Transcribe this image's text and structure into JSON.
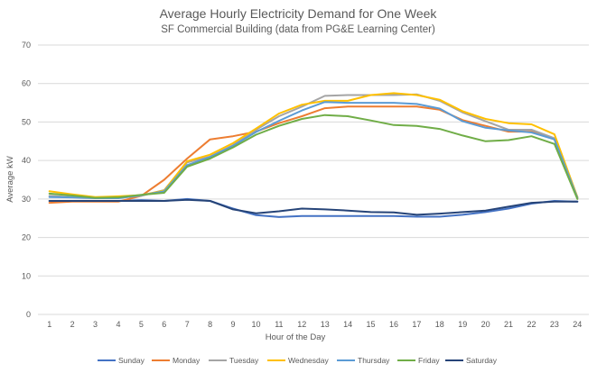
{
  "chart_data": {
    "type": "line",
    "title": "Average Hourly Electricity Demand for One Week",
    "subtitle": "SF Commercial Building (data from PG&E Learning Center)",
    "xlabel": "Hour of the Day",
    "ylabel": "Average kW",
    "ylim": [
      0,
      70
    ],
    "yticks": [
      0,
      10,
      20,
      30,
      40,
      50,
      60,
      70
    ],
    "grid": true,
    "legend_position": "bottom",
    "categories": [
      1,
      2,
      3,
      4,
      5,
      6,
      7,
      8,
      9,
      10,
      11,
      12,
      13,
      14,
      15,
      16,
      17,
      18,
      19,
      20,
      21,
      22,
      23,
      24
    ],
    "series": [
      {
        "name": "Sunday",
        "color": "#4472C4",
        "values": [
          29.5,
          29.5,
          29.5,
          29.5,
          29.7,
          29.5,
          30.0,
          29.5,
          27.5,
          25.8,
          25.3,
          25.6,
          25.6,
          25.6,
          25.6,
          25.6,
          25.4,
          25.4,
          25.9,
          26.6,
          27.5,
          28.8,
          29.5,
          29.3
        ]
      },
      {
        "name": "Monday",
        "color": "#ED7D31",
        "values": [
          29.0,
          29.3,
          29.3,
          29.3,
          30.8,
          35.0,
          40.5,
          45.5,
          46.3,
          47.5,
          49.7,
          51.5,
          53.6,
          54.0,
          54.0,
          54.0,
          54.0,
          53.2,
          50.5,
          49.0,
          47.5,
          47.5,
          45.5,
          30.2
        ]
      },
      {
        "name": "Tuesday",
        "color": "#A5A5A5",
        "values": [
          30.8,
          30.5,
          30.3,
          30.3,
          30.8,
          32.3,
          39.5,
          41.0,
          44.0,
          48.0,
          51.5,
          54.0,
          56.8,
          57.0,
          57.0,
          57.0,
          57.2,
          55.5,
          52.5,
          50.2,
          48.0,
          48.0,
          45.8,
          30.5
        ]
      },
      {
        "name": "Wednesday",
        "color": "#FFC000",
        "values": [
          32.0,
          31.2,
          30.5,
          30.7,
          31.0,
          32.2,
          39.8,
          41.5,
          44.5,
          48.3,
          52.2,
          54.5,
          55.5,
          55.5,
          57.0,
          57.5,
          57.0,
          55.8,
          52.8,
          50.8,
          49.7,
          49.4,
          46.8,
          30.5
        ]
      },
      {
        "name": "Thursday",
        "color": "#5B9BD5",
        "values": [
          30.5,
          30.4,
          30.2,
          30.2,
          31.0,
          32.0,
          38.8,
          40.9,
          43.8,
          47.4,
          50.3,
          53.0,
          55.2,
          55.0,
          55.0,
          55.0,
          54.7,
          53.5,
          50.2,
          48.5,
          47.8,
          47.3,
          45.5,
          30.3
        ]
      },
      {
        "name": "Friday",
        "color": "#70AD47",
        "values": [
          31.4,
          30.9,
          30.3,
          30.4,
          31.1,
          31.6,
          38.4,
          40.5,
          43.4,
          46.7,
          49.0,
          50.8,
          51.8,
          51.5,
          50.4,
          49.2,
          49.0,
          48.2,
          46.5,
          45.0,
          45.3,
          46.3,
          44.3,
          30.0
        ]
      },
      {
        "name": "Saturday",
        "color": "#264478",
        "values": [
          29.5,
          29.5,
          29.5,
          29.5,
          29.5,
          29.5,
          29.8,
          29.5,
          27.3,
          26.3,
          26.8,
          27.5,
          27.3,
          27.0,
          26.6,
          26.5,
          25.9,
          26.2,
          26.6,
          27.0,
          28.0,
          29.0,
          29.3,
          29.3
        ]
      }
    ]
  }
}
